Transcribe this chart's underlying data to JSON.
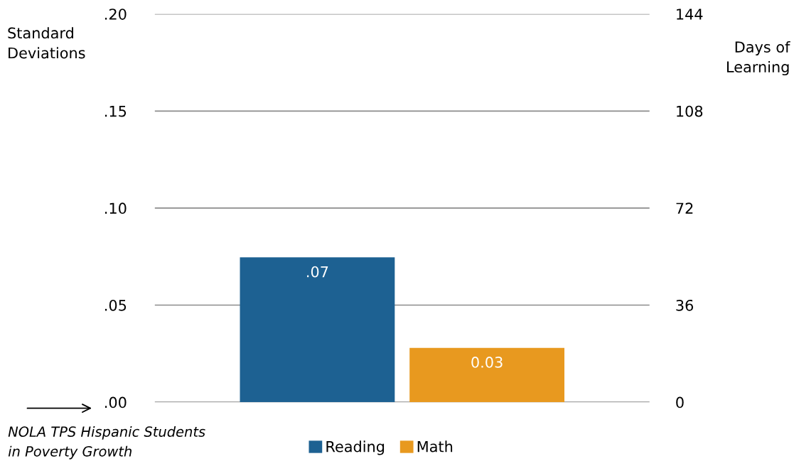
{
  "chart_data": {
    "type": "bar",
    "categories": [
      null
    ],
    "series": [
      {
        "name": "Reading",
        "color": "#1d6192",
        "values": [
          0.0746
        ],
        "value_labels": [
          ".07"
        ]
      },
      {
        "name": "Math",
        "color": "#e8991f",
        "values": [
          0.028
        ],
        "value_labels": [
          "0.03"
        ]
      }
    ],
    "ylabel": "Standard\nDeviations",
    "y2label": "Days of\nLearning",
    "ylim": [
      0,
      0.2
    ],
    "yticks": [
      {
        "value": 0,
        "label": ".00"
      },
      {
        "value": 0.05,
        "label": ".05"
      },
      {
        "value": 0.1,
        "label": ".10"
      },
      {
        "value": 0.15,
        "label": ".15"
      },
      {
        "value": 0.2,
        "label": ".20"
      }
    ],
    "y2lim": [
      0,
      144
    ],
    "y2ticks": [
      0,
      36,
      72,
      108,
      144
    ],
    "annotations": [
      "NOLA TPS Hispanic Students\nin Poverty Growth"
    ],
    "grid": "y",
    "legend": "bottom"
  }
}
